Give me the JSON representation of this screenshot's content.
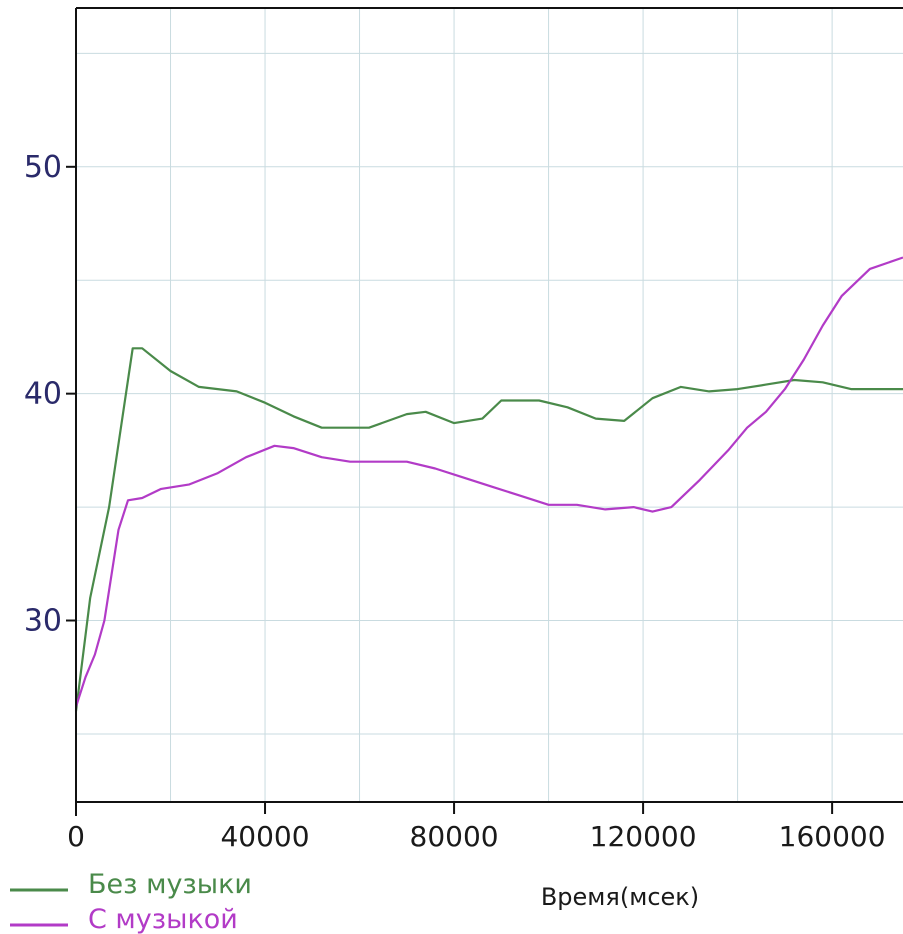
{
  "chart_data": {
    "type": "line",
    "title": "",
    "xlabel": "Время(мсек)",
    "ylabel": "",
    "xlim": [
      0,
      175000
    ],
    "ylim": [
      22,
      57
    ],
    "x_ticks": [
      0,
      40000,
      80000,
      120000,
      160000
    ],
    "x_tick_labels": [
      "0",
      "40000",
      "80000",
      "120000",
      "160000"
    ],
    "y_ticks": [
      30,
      40,
      50
    ],
    "y_tick_labels": [
      "30",
      "40",
      "50"
    ],
    "grid": true,
    "legend_position": "bottom-left",
    "series": [
      {
        "name": "Без музыки",
        "color": "#4a8a4a",
        "points": [
          [
            0,
            26
          ],
          [
            3000,
            31
          ],
          [
            7000,
            35
          ],
          [
            12000,
            42
          ],
          [
            14000,
            42
          ],
          [
            20000,
            41
          ],
          [
            26000,
            40.3
          ],
          [
            34000,
            40.1
          ],
          [
            40000,
            39.6
          ],
          [
            46000,
            39.0
          ],
          [
            52000,
            38.5
          ],
          [
            56000,
            38.5
          ],
          [
            62000,
            38.5
          ],
          [
            70000,
            39.1
          ],
          [
            74000,
            39.2
          ],
          [
            80000,
            38.7
          ],
          [
            86000,
            38.9
          ],
          [
            90000,
            39.7
          ],
          [
            98000,
            39.7
          ],
          [
            104000,
            39.4
          ],
          [
            110000,
            38.9
          ],
          [
            116000,
            38.8
          ],
          [
            122000,
            39.8
          ],
          [
            128000,
            40.3
          ],
          [
            134000,
            40.1
          ],
          [
            140000,
            40.2
          ],
          [
            146000,
            40.4
          ],
          [
            152000,
            40.6
          ],
          [
            158000,
            40.5
          ],
          [
            164000,
            40.2
          ],
          [
            175000,
            40.2
          ]
        ]
      },
      {
        "name": "С музыкой",
        "color": "#b23bc7",
        "points": [
          [
            0,
            26.2
          ],
          [
            2000,
            27.5
          ],
          [
            4000,
            28.5
          ],
          [
            6000,
            30
          ],
          [
            9000,
            34
          ],
          [
            11000,
            35.3
          ],
          [
            14000,
            35.4
          ],
          [
            18000,
            35.8
          ],
          [
            24000,
            36.0
          ],
          [
            30000,
            36.5
          ],
          [
            36000,
            37.2
          ],
          [
            42000,
            37.7
          ],
          [
            46000,
            37.6
          ],
          [
            52000,
            37.2
          ],
          [
            58000,
            37.0
          ],
          [
            64000,
            37.0
          ],
          [
            70000,
            37.0
          ],
          [
            76000,
            36.7
          ],
          [
            82000,
            36.3
          ],
          [
            88000,
            35.9
          ],
          [
            94000,
            35.5
          ],
          [
            100000,
            35.1
          ],
          [
            106000,
            35.1
          ],
          [
            112000,
            34.9
          ],
          [
            118000,
            35.0
          ],
          [
            122000,
            34.8
          ],
          [
            126000,
            35.0
          ],
          [
            132000,
            36.2
          ],
          [
            138000,
            37.5
          ],
          [
            142000,
            38.5
          ],
          [
            146000,
            39.2
          ],
          [
            150000,
            40.2
          ],
          [
            154000,
            41.5
          ],
          [
            158000,
            43.0
          ],
          [
            162000,
            44.3
          ],
          [
            168000,
            45.5
          ],
          [
            175000,
            46
          ]
        ]
      }
    ]
  }
}
